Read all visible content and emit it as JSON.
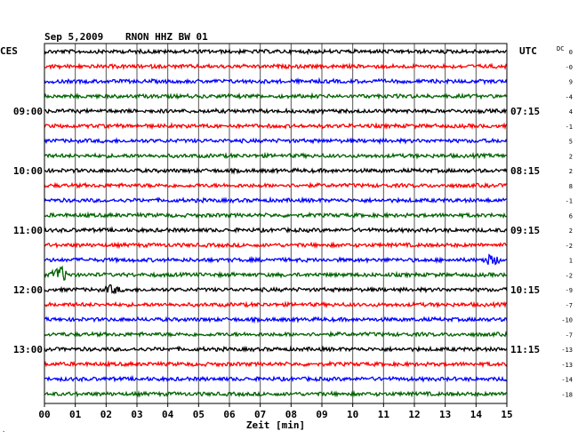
{
  "header": {
    "date": "Sep 5,2009",
    "station": "RNON HHZ BW 01",
    "left_zone": "CES",
    "right_zone": "UTC",
    "dc_label": "DC"
  },
  "footer": {
    "xlabel": "Zeit [min]",
    "corner_mark": "."
  },
  "chart_data": {
    "type": "line",
    "title": "Sep 5,2009   RNON HHZ BW 01",
    "xlabel": "Zeit [min]",
    "x_ticks": [
      "00",
      "01",
      "02",
      "03",
      "04",
      "05",
      "06",
      "07",
      "08",
      "09",
      "10",
      "11",
      "12",
      "13",
      "14",
      "15"
    ],
    "xlim": [
      0,
      15
    ],
    "grid": true,
    "trace_colors": [
      "#000000",
      "#ff0000",
      "#0000ff",
      "#006400"
    ],
    "left_time_labels": [
      {
        "row": 4,
        "text": "09:00"
      },
      {
        "row": 8,
        "text": "10:00"
      },
      {
        "row": 12,
        "text": "11:00"
      },
      {
        "row": 16,
        "text": "12:00"
      },
      {
        "row": 20,
        "text": "13:00"
      }
    ],
    "right_time_labels": [
      {
        "row": 4,
        "text": "07:15"
      },
      {
        "row": 8,
        "text": "08:15"
      },
      {
        "row": 12,
        "text": "09:15"
      },
      {
        "row": 16,
        "text": "10:15"
      },
      {
        "row": 20,
        "text": "11:15"
      }
    ],
    "dc_offsets": [
      "0",
      "-0",
      "9",
      "-4",
      "4",
      "-1",
      "5",
      "2",
      "2",
      "8",
      "-1",
      "6",
      "2",
      "-2",
      "1",
      "-2",
      "-9",
      "-7",
      "-10",
      "-7",
      "-13",
      "-13",
      "-14",
      "-18"
    ],
    "events": [
      {
        "row": 14,
        "minute": 14.5,
        "amplitude": 1.8
      },
      {
        "row": 15,
        "minute": 0.5,
        "amplitude": 3.0
      },
      {
        "row": 16,
        "minute": 2.2,
        "amplitude": 1.4
      }
    ]
  }
}
